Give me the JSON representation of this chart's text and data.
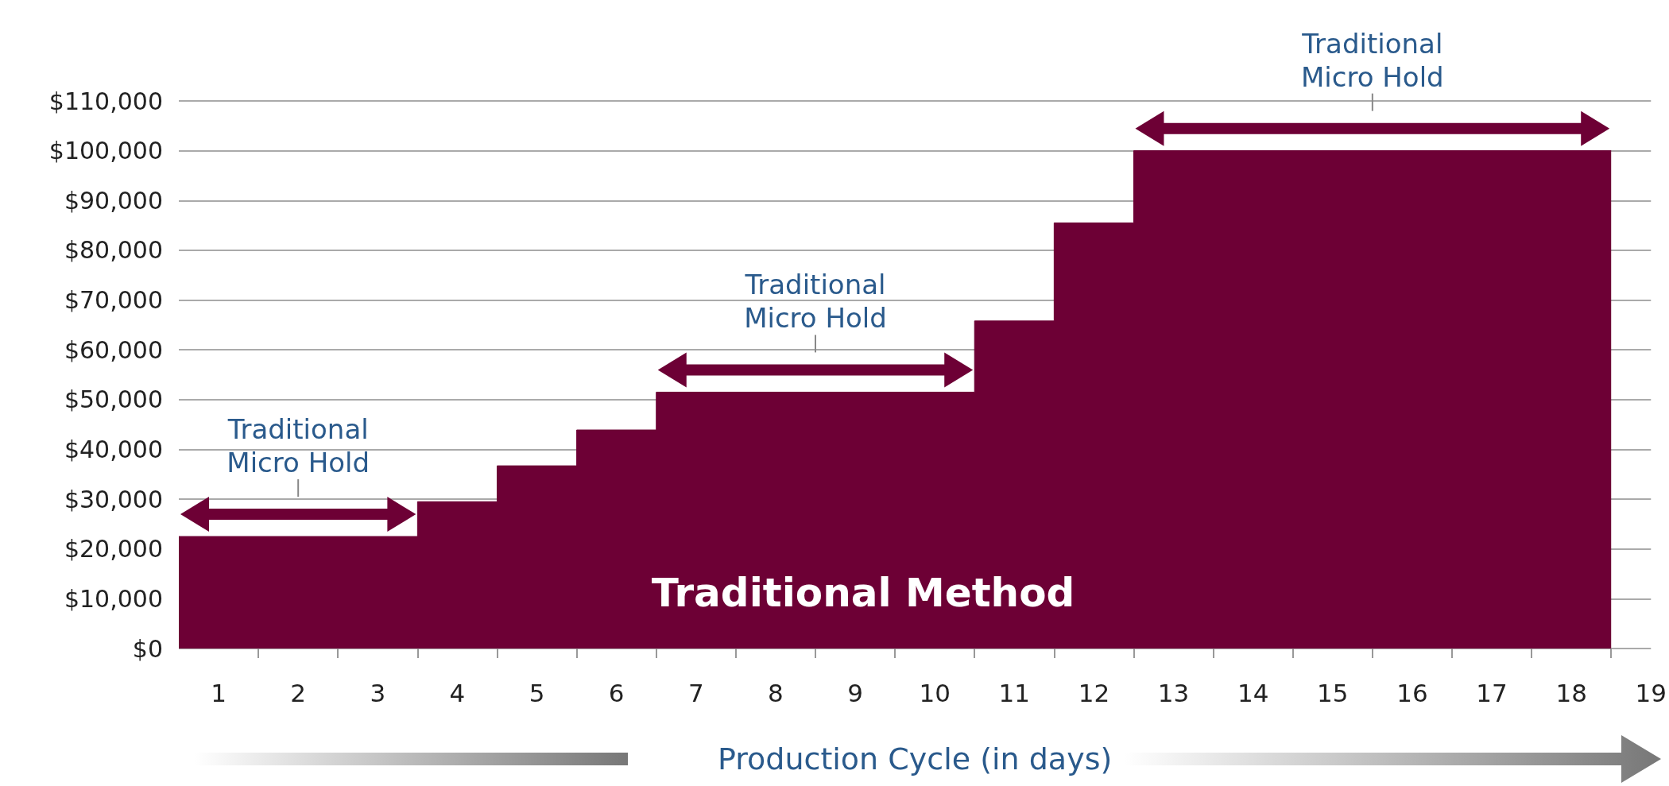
{
  "chart_data": {
    "type": "area",
    "xlabel": "Production Cycle (in days)",
    "x": [
      0,
      3,
      3,
      4,
      4,
      5,
      5,
      6,
      6,
      10,
      10,
      11,
      11,
      12,
      12,
      18
    ],
    "values": [
      22500,
      22500,
      29500,
      29500,
      36700,
      36700,
      43900,
      43900,
      51500,
      51500,
      65800,
      65800,
      85500,
      85500,
      100000,
      100000
    ],
    "color": "#6d0035",
    "xlim": [
      0,
      18.5
    ],
    "xticks": [
      {
        "value": 0.5,
        "label": "1"
      },
      {
        "value": 1.5,
        "label": "2"
      },
      {
        "value": 2.5,
        "label": "3"
      },
      {
        "value": 3.5,
        "label": "4"
      },
      {
        "value": 4.5,
        "label": "5"
      },
      {
        "value": 5.5,
        "label": "6"
      },
      {
        "value": 6.5,
        "label": "7"
      },
      {
        "value": 7.5,
        "label": "8"
      },
      {
        "value": 8.5,
        "label": "9"
      },
      {
        "value": 9.5,
        "label": "10"
      },
      {
        "value": 10.5,
        "label": "11"
      },
      {
        "value": 11.5,
        "label": "12"
      },
      {
        "value": 12.5,
        "label": "13"
      },
      {
        "value": 13.5,
        "label": "14"
      },
      {
        "value": 14.5,
        "label": "15"
      },
      {
        "value": 15.5,
        "label": "16"
      },
      {
        "value": 16.5,
        "label": "17"
      },
      {
        "value": 17.5,
        "label": "18"
      },
      {
        "value": 18.5,
        "label": "19"
      },
      {
        "value": 1,
        "label": null
      },
      {
        "value": 2,
        "label": null
      },
      {
        "value": 3,
        "label": null
      },
      {
        "value": 4,
        "label": null
      },
      {
        "value": 5,
        "label": null
      },
      {
        "value": 6,
        "label": null
      },
      {
        "value": 7,
        "label": null
      },
      {
        "value": 8,
        "label": null
      },
      {
        "value": 9,
        "label": null
      },
      {
        "value": 10,
        "label": null
      },
      {
        "value": 11,
        "label": null
      },
      {
        "value": 12,
        "label": null
      },
      {
        "value": 13,
        "label": null
      },
      {
        "value": 14,
        "label": null
      },
      {
        "value": 15,
        "label": null
      },
      {
        "value": 16,
        "label": null
      },
      {
        "value": 17,
        "label": null
      },
      {
        "value": 18,
        "label": null
      }
    ],
    "ylim": [
      0,
      110000
    ],
    "yticks": [
      {
        "value": 0,
        "label": "$0"
      },
      {
        "value": 10000,
        "label": "$10,000"
      },
      {
        "value": 20000,
        "label": "$20,000"
      },
      {
        "value": 30000,
        "label": "$30,000"
      },
      {
        "value": 40000,
        "label": "$40,000"
      },
      {
        "value": 50000,
        "label": "$50,000"
      },
      {
        "value": 60000,
        "label": "$60,000"
      },
      {
        "value": 70000,
        "label": "$70,000"
      },
      {
        "value": 80000,
        "label": "$80,000"
      },
      {
        "value": 90000,
        "label": "$90,000"
      },
      {
        "value": 100000,
        "label": "$100,000"
      },
      {
        "value": 110000,
        "label": "$110,000"
      }
    ],
    "grid": "y",
    "annotations": [
      "Traditional Micro Hold",
      "Traditional Micro Hold",
      "Traditional Micro Hold",
      "Traditional Method"
    ]
  }
}
